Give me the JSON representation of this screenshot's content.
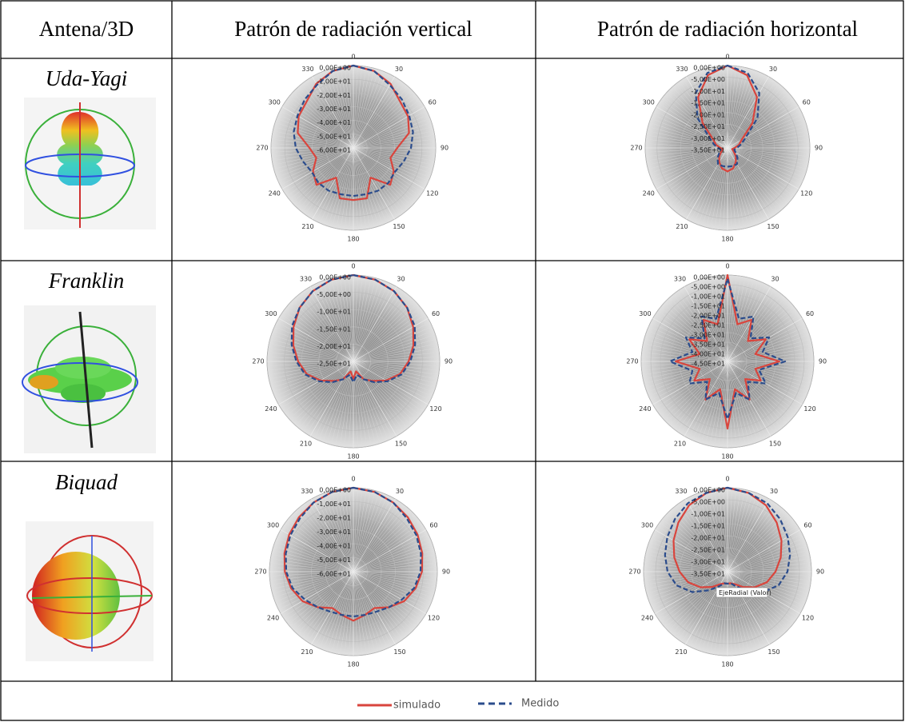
{
  "table": {
    "header": [
      "Antena/3D",
      "Patrón de radiación vertical",
      "Patrón de radiación horizontal"
    ],
    "rows": [
      "Uda-Yagi",
      "Franklin",
      "Biquad"
    ]
  },
  "chart_data": [
    {
      "type": "polar",
      "angle_ticks": [
        0,
        30,
        60,
        90,
        120,
        150,
        180,
        210,
        240,
        270,
        300,
        330
      ],
      "rlim": [
        -60,
        0
      ],
      "rticks": [
        {
          "value": 0,
          "label": "0,00E+00"
        },
        {
          "value": -10,
          "label": "-1,00E+01"
        },
        {
          "value": -20,
          "label": "-2,00E+01"
        },
        {
          "value": -30,
          "label": "-3,00E+01"
        },
        {
          "value": -40,
          "label": "-4,00E+01"
        },
        {
          "value": -50,
          "label": "-5,00E+01"
        },
        {
          "value": -60,
          "label": "-6,00E+01"
        }
      ],
      "theta": [
        0,
        15,
        30,
        45,
        60,
        75,
        90,
        105,
        120,
        135,
        150,
        165,
        180,
        195,
        210,
        225,
        240,
        255,
        270,
        285,
        300,
        315,
        330,
        345
      ],
      "series": [
        {
          "name": "simulado",
          "color": "#d9453d",
          "values": [
            0,
            -2,
            -6,
            -12,
            -14,
            -18,
            -28,
            -32,
            -26,
            -22,
            -35,
            -22,
            -22,
            -22,
            -35,
            -22,
            -26,
            -32,
            -28,
            -18,
            -14,
            -12,
            -6,
            -2
          ]
        },
        {
          "name": "Medido",
          "color": "#2b4c8c",
          "dashed": true,
          "values": [
            0,
            -2,
            -7,
            -10,
            -13,
            -15,
            -18,
            -22,
            -25,
            -24,
            -24,
            -25,
            -25,
            -25,
            -24,
            -24,
            -25,
            -22,
            -18,
            -15,
            -13,
            -10,
            -7,
            -2
          ]
        }
      ]
    },
    {
      "type": "polar",
      "angle_ticks": [
        0,
        30,
        60,
        90,
        120,
        150,
        180,
        210,
        240,
        270,
        300,
        330
      ],
      "rlim": [
        -35,
        0
      ],
      "rticks": [
        {
          "value": 0,
          "label": "0,00E+00"
        },
        {
          "value": -5,
          "label": "-5,00E+00"
        },
        {
          "value": -10,
          "label": "-1,00E+01"
        },
        {
          "value": -15,
          "label": "-1,50E+01"
        },
        {
          "value": -20,
          "label": "-2,00E+01"
        },
        {
          "value": -25,
          "label": "-2,50E+01"
        },
        {
          "value": -30,
          "label": "-3,00E+01"
        },
        {
          "value": -35,
          "label": "-3,50E+01"
        }
      ],
      "theta": [
        0,
        15,
        30,
        45,
        60,
        75,
        90,
        105,
        120,
        135,
        150,
        165,
        180,
        195,
        210,
        225,
        240,
        255,
        270,
        285,
        300,
        315,
        330,
        345
      ],
      "series": [
        {
          "name": "simulado",
          "color": "#d9453d",
          "values": [
            0,
            -3,
            -10,
            -20,
            -28,
            -30,
            -32,
            -33,
            -32,
            -30,
            -28,
            -26,
            -25,
            -26,
            -28,
            -30,
            -32,
            -33,
            -32,
            -30,
            -28,
            -20,
            -10,
            -3
          ]
        },
        {
          "name": "Medido",
          "color": "#2b4c8c",
          "dashed": true,
          "values": [
            0,
            -2,
            -8,
            -17,
            -26,
            -29,
            -31,
            -32,
            -31,
            -29,
            -27,
            -27,
            -27,
            -27,
            -27,
            -29,
            -31,
            -32,
            -31,
            -29,
            -26,
            -17,
            -8,
            -2
          ]
        }
      ]
    },
    {
      "type": "polar",
      "angle_ticks": [
        0,
        30,
        60,
        90,
        120,
        150,
        180,
        210,
        240,
        270,
        300,
        330
      ],
      "rlim": [
        -25,
        0
      ],
      "rticks": [
        {
          "value": 0,
          "label": "0,00E+00"
        },
        {
          "value": -5,
          "label": "-5,00E+00"
        },
        {
          "value": -10,
          "label": "-1,00E+01"
        },
        {
          "value": -15,
          "label": "-1,50E+01"
        },
        {
          "value": -20,
          "label": "-2,00E+01"
        },
        {
          "value": -25,
          "label": "-2,50E+01"
        }
      ],
      "theta": [
        0,
        15,
        30,
        45,
        60,
        75,
        90,
        105,
        120,
        135,
        150,
        165,
        180,
        195,
        210,
        225,
        240,
        255,
        270,
        285,
        300,
        315,
        330,
        345
      ],
      "series": [
        {
          "name": "simulado",
          "color": "#d9453d",
          "values": [
            0,
            -0.5,
            -1.5,
            -3,
            -5,
            -7,
            -9,
            -11,
            -14,
            -17,
            -19,
            -22,
            -20,
            -22,
            -19,
            -17,
            -14,
            -11,
            -9,
            -7,
            -5,
            -3,
            -1.5,
            -0.5
          ]
        },
        {
          "name": "Medido",
          "color": "#2b4c8c",
          "dashed": true,
          "values": [
            0,
            -0.5,
            -1.5,
            -3,
            -4.5,
            -6.5,
            -8.5,
            -10.5,
            -13.5,
            -16.5,
            -19,
            -21,
            -19,
            -21,
            -19,
            -16.5,
            -13.5,
            -10.5,
            -8.5,
            -6.5,
            -4.5,
            -3,
            -1.5,
            -0.5
          ]
        }
      ]
    },
    {
      "type": "polar",
      "angle_ticks": [
        0,
        30,
        60,
        90,
        120,
        150,
        180,
        210,
        240,
        270,
        300,
        330
      ],
      "rlim": [
        -45,
        0
      ],
      "rticks": [
        {
          "value": 0,
          "label": "0,00E+00"
        },
        {
          "value": -5,
          "label": "-5,00E+00"
        },
        {
          "value": -10,
          "label": "-1,00E+01"
        },
        {
          "value": -15,
          "label": "-1,50E+01"
        },
        {
          "value": -20,
          "label": "-2,00E+01"
        },
        {
          "value": -25,
          "label": "-2,50E+01"
        },
        {
          "value": -30,
          "label": "-3,00E+01"
        },
        {
          "value": -35,
          "label": "-3,50E+01"
        },
        {
          "value": -40,
          "label": "-4,00E+01"
        },
        {
          "value": -45,
          "label": "-4,50E+01"
        }
      ],
      "theta": [
        0,
        15,
        30,
        45,
        60,
        75,
        90,
        105,
        120,
        135,
        150,
        165,
        180,
        195,
        210,
        225,
        240,
        255,
        270,
        285,
        300,
        315,
        330,
        345
      ],
      "series": [
        {
          "name": "simulado",
          "color": "#d9453d",
          "values": [
            0,
            -25,
            -20,
            -30,
            -22,
            -30,
            -18,
            -30,
            -25,
            -32,
            -22,
            -30,
            -10,
            -30,
            -22,
            -32,
            -25,
            -30,
            -18,
            -30,
            -22,
            -30,
            -20,
            -25
          ]
        },
        {
          "name": "Medido",
          "color": "#2b4c8c",
          "dashed": true,
          "values": [
            -2,
            -22,
            -18,
            -28,
            -20,
            -26,
            -15,
            -28,
            -22,
            -30,
            -22,
            -28,
            -15,
            -28,
            -22,
            -30,
            -22,
            -26,
            -15,
            -26,
            -20,
            -28,
            -18,
            -22
          ]
        }
      ]
    },
    {
      "type": "polar",
      "angle_ticks": [
        0,
        30,
        60,
        90,
        120,
        150,
        180,
        210,
        240,
        270,
        300,
        330
      ],
      "rlim": [
        -60,
        0
      ],
      "rticks": [
        {
          "value": 0,
          "label": "0,00E+00"
        },
        {
          "value": -10,
          "label": "-1,00E+01"
        },
        {
          "value": -20,
          "label": "-2,00E+01"
        },
        {
          "value": -30,
          "label": "-3,00E+01"
        },
        {
          "value": -40,
          "label": "-4,00E+01"
        },
        {
          "value": -50,
          "label": "-5,00E+01"
        },
        {
          "value": -60,
          "label": "-6,00E+01"
        }
      ],
      "theta": [
        0,
        15,
        30,
        45,
        60,
        75,
        90,
        105,
        120,
        135,
        150,
        165,
        180,
        195,
        210,
        225,
        240,
        255,
        270,
        285,
        300,
        315,
        330,
        345
      ],
      "series": [
        {
          "name": "simulado",
          "color": "#d9453d",
          "values": [
            0,
            -1,
            -3,
            -5,
            -7,
            -9,
            -11,
            -14,
            -18,
            -24,
            -30,
            -28,
            -25,
            -28,
            -30,
            -24,
            -18,
            -14,
            -11,
            -9,
            -7,
            -5,
            -3,
            -1
          ]
        },
        {
          "name": "Medido",
          "color": "#2b4c8c",
          "dashed": true,
          "values": [
            0,
            -1,
            -3,
            -6,
            -8,
            -10,
            -12,
            -15,
            -20,
            -24,
            -27,
            -28,
            -28,
            -28,
            -27,
            -24,
            -20,
            -15,
            -12,
            -10,
            -8,
            -6,
            -3,
            -1
          ]
        }
      ]
    },
    {
      "type": "polar",
      "angle_ticks": [
        0,
        30,
        60,
        90,
        120,
        150,
        180,
        210,
        240,
        270,
        300,
        330
      ],
      "rlim": [
        -35,
        0
      ],
      "rticks": [
        {
          "value": 0,
          "label": "0,00E+00"
        },
        {
          "value": -5,
          "label": "-5,00E+00"
        },
        {
          "value": -10,
          "label": "-1,00E+01"
        },
        {
          "value": -15,
          "label": "-1,50E+01"
        },
        {
          "value": -20,
          "label": "-2,00E+01"
        },
        {
          "value": -25,
          "label": "-2,50E+01"
        },
        {
          "value": -30,
          "label": "-3,00E+01"
        },
        {
          "value": -35,
          "label": "-3,50E+01"
        }
      ],
      "theta": [
        0,
        15,
        30,
        45,
        60,
        75,
        90,
        105,
        120,
        135,
        150,
        165,
        180,
        195,
        210,
        225,
        240,
        255,
        270,
        285,
        300,
        315,
        330,
        345
      ],
      "annotation": "EjeRadial (Valor)",
      "series": [
        {
          "name": "simulado",
          "color": "#d9453d",
          "values": [
            0,
            -1,
            -3,
            -6,
            -9,
            -12,
            -15,
            -18,
            -22,
            -26,
            -29,
            -30,
            -30,
            -30,
            -29,
            -26,
            -22,
            -18,
            -15,
            -12,
            -9,
            -6,
            -3,
            -1
          ]
        },
        {
          "name": "Medido",
          "color": "#2b4c8c",
          "dashed": true,
          "values": [
            0,
            -1,
            -2,
            -4,
            -6,
            -8,
            -10,
            -13,
            -18,
            -24,
            -28,
            -30,
            -30,
            -30,
            -28,
            -24,
            -18,
            -13,
            -10,
            -8,
            -6,
            -4,
            -2,
            -1
          ]
        }
      ]
    }
  ]
}
